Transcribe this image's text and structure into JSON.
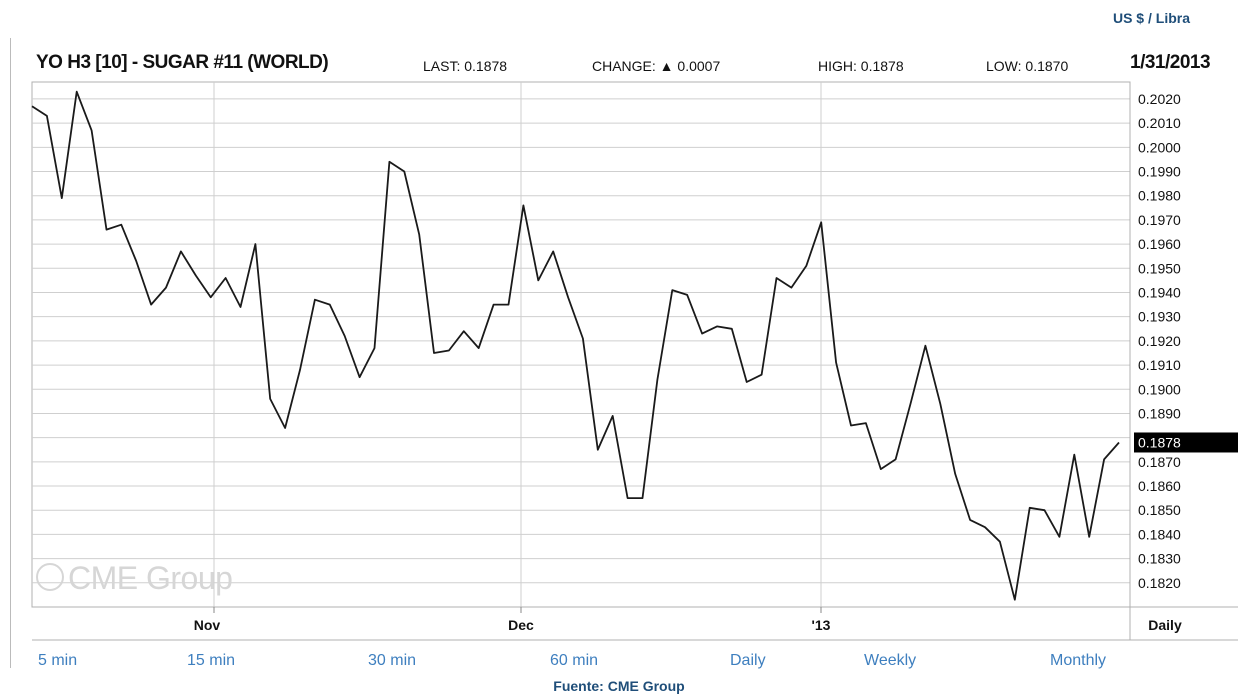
{
  "unit_label": "US $ / Libra",
  "header": {
    "title": "YO H3 [10] - SUGAR #11 (WORLD)",
    "last": "LAST: 0.1878",
    "change": "CHANGE: ▲ 0.0007",
    "high": "HIGH: 0.1878",
    "low": "LOW: 0.1870",
    "date": "1/31/2013"
  },
  "watermark": "CME Group",
  "links": [
    "5 min",
    "15 min",
    "30 min",
    "60 min",
    "Daily",
    "Weekly",
    "Monthly"
  ],
  "source": "Fuente: CME Group",
  "colors": {
    "line": "#1a1a1a",
    "grid": "#cfcfcf",
    "link": "#3e7fbf",
    "source": "#1f4e79"
  },
  "chart_data": {
    "type": "line",
    "title": "YO H3 [10] - SUGAR #11 (WORLD)",
    "ylabel": "US $ / Libra",
    "ylim": [
      0.181,
      0.2027
    ],
    "yticks": [
      "0.2020",
      "0.2010",
      "0.2000",
      "0.1990",
      "0.1980",
      "0.1970",
      "0.1960",
      "0.1950",
      "0.1940",
      "0.1930",
      "0.1920",
      "0.1910",
      "0.1900",
      "0.1890",
      "0.1880",
      "0.1870",
      "0.1860",
      "0.1850",
      "0.1840",
      "0.1830",
      "0.1820"
    ],
    "xtick_labels": [
      "Nov",
      "Dec",
      "'13",
      "Daily"
    ],
    "last_value_label": "0.1878",
    "grid": true,
    "series": [
      {
        "values": [
          0.2017,
          0.2013,
          0.1979,
          0.2023,
          0.2007,
          0.1966,
          0.1968,
          0.1953,
          0.1935,
          0.1942,
          0.1957,
          0.1947,
          0.1938,
          0.1946,
          0.1934,
          0.196,
          0.1896,
          0.1884,
          0.1908,
          0.1937,
          0.1935,
          0.1922,
          0.1905,
          0.1917,
          0.1994,
          0.199,
          0.1964,
          0.1915,
          0.1916,
          0.1924,
          0.1917,
          0.1935,
          0.1935,
          0.1976,
          0.1945,
          0.1957,
          0.1938,
          0.1921,
          0.1875,
          0.1889,
          0.1855,
          0.1855,
          0.1904,
          0.1941,
          0.1939,
          0.1923,
          0.1926,
          0.1925,
          0.1903,
          0.1906,
          0.1946,
          0.1942,
          0.1951,
          0.1969,
          0.1911,
          0.1885,
          0.1886,
          0.1867,
          0.1871,
          0.1894,
          0.1918,
          0.1894,
          0.1865,
          0.1846,
          0.1843,
          0.1837,
          0.1813,
          0.1851,
          0.185,
          0.1839,
          0.1873,
          0.1839,
          0.1871,
          0.1878
        ]
      }
    ]
  }
}
